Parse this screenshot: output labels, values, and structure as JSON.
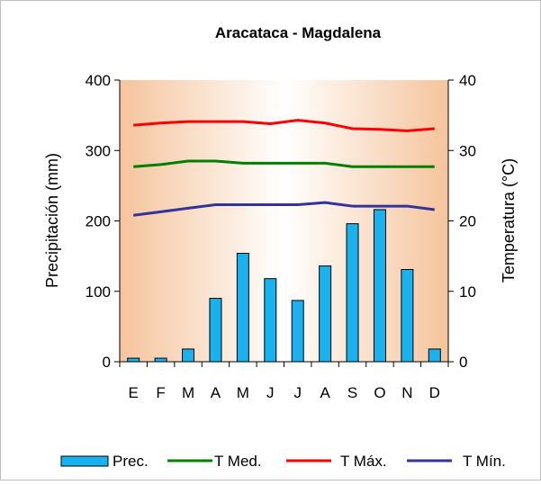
{
  "chart_data": {
    "type": "bar",
    "title": "Aracataca - Magdalena",
    "categories": [
      "E",
      "F",
      "M",
      "A",
      "M",
      "J",
      "J",
      "A",
      "S",
      "O",
      "N",
      "D"
    ],
    "ylabel": "Precipitación (mm)",
    "y2label": "Temperatura (°C)",
    "ylim": [
      0,
      400
    ],
    "y2lim": [
      0,
      40
    ],
    "yticks": [
      "0",
      "100",
      "200",
      "300",
      "400"
    ],
    "y2ticks": [
      "0",
      "10",
      "20",
      "30",
      "40"
    ],
    "grid": false,
    "legend_position": "bottom",
    "series": [
      {
        "name": "Prec.",
        "kind": "bar",
        "axis": "left",
        "color": "#1ab2ee",
        "values": [
          5,
          5,
          18,
          90,
          154,
          118,
          87,
          136,
          196,
          216,
          131,
          18
        ]
      },
      {
        "name": "T Med.",
        "kind": "line",
        "axis": "right",
        "color": "#008000",
        "values": [
          27.7,
          28.0,
          28.5,
          28.5,
          28.2,
          28.2,
          28.2,
          28.2,
          27.7,
          27.7,
          27.7,
          27.7
        ]
      },
      {
        "name": "T Máx.",
        "kind": "line",
        "axis": "right",
        "color": "#ff0000",
        "values": [
          33.6,
          33.9,
          34.1,
          34.1,
          34.1,
          33.8,
          34.3,
          33.9,
          33.1,
          33.0,
          32.8,
          33.1
        ]
      },
      {
        "name": "T Mín.",
        "kind": "line",
        "axis": "right",
        "color": "#333399",
        "values": [
          20.8,
          21.3,
          21.8,
          22.3,
          22.3,
          22.3,
          22.3,
          22.6,
          22.1,
          22.1,
          22.1,
          21.6
        ]
      }
    ]
  }
}
